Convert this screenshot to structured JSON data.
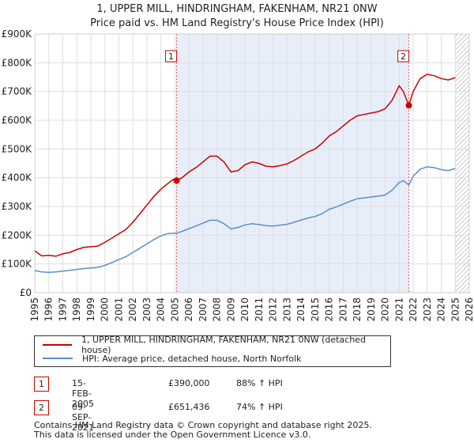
{
  "chart_data": {
    "type": "line",
    "title": "1, UPPER MILL, HINDRINGHAM, FAKENHAM, NR21 0NW",
    "subtitle": "Price paid vs. HM Land Registry's House Price Index (HPI)",
    "xlim": [
      1995,
      2026
    ],
    "ylim": [
      0,
      900000
    ],
    "xticks": [
      1995,
      1996,
      1997,
      1998,
      1999,
      2000,
      2001,
      2002,
      2003,
      2004,
      2005,
      2006,
      2007,
      2008,
      2009,
      2010,
      2011,
      2012,
      2013,
      2014,
      2015,
      2016,
      2017,
      2018,
      2019,
      2020,
      2021,
      2022,
      2023,
      2024,
      2025,
      2026
    ],
    "yticks": [
      {
        "value": 0,
        "label": "£0"
      },
      {
        "value": 100000,
        "label": "£100K"
      },
      {
        "value": 200000,
        "label": "£200K"
      },
      {
        "value": 300000,
        "label": "£300K"
      },
      {
        "value": 400000,
        "label": "£400K"
      },
      {
        "value": 500000,
        "label": "£500K"
      },
      {
        "value": 600000,
        "label": "£600K"
      },
      {
        "value": 700000,
        "label": "£700K"
      },
      {
        "value": 800000,
        "label": "£800K"
      },
      {
        "value": 900000,
        "label": "£900K"
      }
    ],
    "series": [
      {
        "name": "1, UPPER MILL, HINDRINGHAM, FAKENHAM, NR21 0NW (detached house)",
        "color": "#cc0000",
        "points": [
          [
            1995.0,
            145000
          ],
          [
            1995.5,
            128000
          ],
          [
            1996.0,
            130000
          ],
          [
            1996.5,
            127000
          ],
          [
            1997.0,
            135000
          ],
          [
            1997.5,
            140000
          ],
          [
            1998.0,
            150000
          ],
          [
            1998.5,
            158000
          ],
          [
            1999.0,
            160000
          ],
          [
            1999.5,
            162000
          ],
          [
            2000.0,
            175000
          ],
          [
            2000.5,
            190000
          ],
          [
            2001.0,
            205000
          ],
          [
            2001.5,
            220000
          ],
          [
            2002.0,
            245000
          ],
          [
            2002.5,
            275000
          ],
          [
            2003.0,
            305000
          ],
          [
            2003.5,
            335000
          ],
          [
            2004.0,
            360000
          ],
          [
            2004.5,
            380000
          ],
          [
            2004.9,
            395000
          ],
          [
            2005.12,
            390000
          ],
          [
            2005.5,
            400000
          ],
          [
            2006.0,
            420000
          ],
          [
            2006.5,
            435000
          ],
          [
            2007.0,
            455000
          ],
          [
            2007.5,
            475000
          ],
          [
            2008.0,
            475000
          ],
          [
            2008.5,
            455000
          ],
          [
            2009.0,
            420000
          ],
          [
            2009.5,
            425000
          ],
          [
            2010.0,
            445000
          ],
          [
            2010.5,
            455000
          ],
          [
            2011.0,
            450000
          ],
          [
            2011.5,
            440000
          ],
          [
            2012.0,
            438000
          ],
          [
            2012.5,
            442000
          ],
          [
            2013.0,
            448000
          ],
          [
            2013.5,
            460000
          ],
          [
            2014.0,
            475000
          ],
          [
            2014.5,
            490000
          ],
          [
            2015.0,
            500000
          ],
          [
            2015.5,
            520000
          ],
          [
            2016.0,
            545000
          ],
          [
            2016.5,
            560000
          ],
          [
            2017.0,
            580000
          ],
          [
            2017.5,
            600000
          ],
          [
            2018.0,
            615000
          ],
          [
            2018.5,
            620000
          ],
          [
            2019.0,
            625000
          ],
          [
            2019.5,
            630000
          ],
          [
            2020.0,
            640000
          ],
          [
            2020.5,
            670000
          ],
          [
            2021.0,
            720000
          ],
          [
            2021.3,
            700000
          ],
          [
            2021.69,
            651436
          ],
          [
            2022.0,
            700000
          ],
          [
            2022.5,
            745000
          ],
          [
            2023.0,
            760000
          ],
          [
            2023.5,
            755000
          ],
          [
            2024.0,
            745000
          ],
          [
            2024.5,
            740000
          ],
          [
            2025.0,
            748000
          ]
        ]
      },
      {
        "name": "HPI: Average price, detached house, North Norfolk",
        "color": "#5b8ecb",
        "points": [
          [
            1995.0,
            77000
          ],
          [
            1995.5,
            72000
          ],
          [
            1996.0,
            71000
          ],
          [
            1996.5,
            72000
          ],
          [
            1997.0,
            75000
          ],
          [
            1997.5,
            78000
          ],
          [
            1998.0,
            81000
          ],
          [
            1998.5,
            84000
          ],
          [
            1999.0,
            86000
          ],
          [
            1999.5,
            88000
          ],
          [
            2000.0,
            95000
          ],
          [
            2000.5,
            105000
          ],
          [
            2001.0,
            115000
          ],
          [
            2001.5,
            125000
          ],
          [
            2002.0,
            140000
          ],
          [
            2002.5,
            155000
          ],
          [
            2003.0,
            170000
          ],
          [
            2003.5,
            185000
          ],
          [
            2004.0,
            198000
          ],
          [
            2004.5,
            206000
          ],
          [
            2005.12,
            207000
          ],
          [
            2005.5,
            213000
          ],
          [
            2006.0,
            223000
          ],
          [
            2006.5,
            232000
          ],
          [
            2007.0,
            242000
          ],
          [
            2007.5,
            252000
          ],
          [
            2008.0,
            252000
          ],
          [
            2008.5,
            240000
          ],
          [
            2009.0,
            222000
          ],
          [
            2009.5,
            227000
          ],
          [
            2010.0,
            236000
          ],
          [
            2010.5,
            240000
          ],
          [
            2011.0,
            237000
          ],
          [
            2011.5,
            233000
          ],
          [
            2012.0,
            232000
          ],
          [
            2012.5,
            235000
          ],
          [
            2013.0,
            238000
          ],
          [
            2013.5,
            245000
          ],
          [
            2014.0,
            253000
          ],
          [
            2014.5,
            260000
          ],
          [
            2015.0,
            265000
          ],
          [
            2015.5,
            275000
          ],
          [
            2016.0,
            290000
          ],
          [
            2016.5,
            298000
          ],
          [
            2017.0,
            308000
          ],
          [
            2017.5,
            318000
          ],
          [
            2018.0,
            327000
          ],
          [
            2018.5,
            330000
          ],
          [
            2019.0,
            333000
          ],
          [
            2019.5,
            336000
          ],
          [
            2020.0,
            340000
          ],
          [
            2020.5,
            357000
          ],
          [
            2021.0,
            383000
          ],
          [
            2021.3,
            390000
          ],
          [
            2021.69,
            375000
          ],
          [
            2022.0,
            405000
          ],
          [
            2022.5,
            430000
          ],
          [
            2023.0,
            438000
          ],
          [
            2023.5,
            435000
          ],
          [
            2024.0,
            428000
          ],
          [
            2024.5,
            425000
          ],
          [
            2025.0,
            432000
          ]
        ]
      }
    ],
    "transactions": [
      {
        "label": "1",
        "x": 2005.12,
        "y": 390000
      },
      {
        "label": "2",
        "x": 2021.69,
        "y": 651436
      }
    ],
    "shaded_range": [
      2005.12,
      2021.69
    ],
    "hatched_from": 2025.0
  },
  "legend": {
    "property": "1, UPPER MILL, HINDRINGHAM, FAKENHAM, NR21 0NW (detached house)",
    "hpi": "HPI: Average price, detached house, North Norfolk"
  },
  "transactions_table": [
    {
      "num": "1",
      "date": "15-FEB-2005",
      "price": "£390,000",
      "hpi": "88% ↑ HPI"
    },
    {
      "num": "2",
      "date": "09-SEP-2021",
      "price": "£651,436",
      "hpi": "74% ↑ HPI"
    }
  ],
  "footer": {
    "line1": "Contains HM Land Registry data © Crown copyright and database right 2025.",
    "line2": "This data is licensed under the Open Government Licence v3.0."
  },
  "colors": {
    "property": "#cc0000",
    "hpi": "#5b8ecb",
    "shade": "#e8eef9",
    "grid": "#dddddd"
  }
}
